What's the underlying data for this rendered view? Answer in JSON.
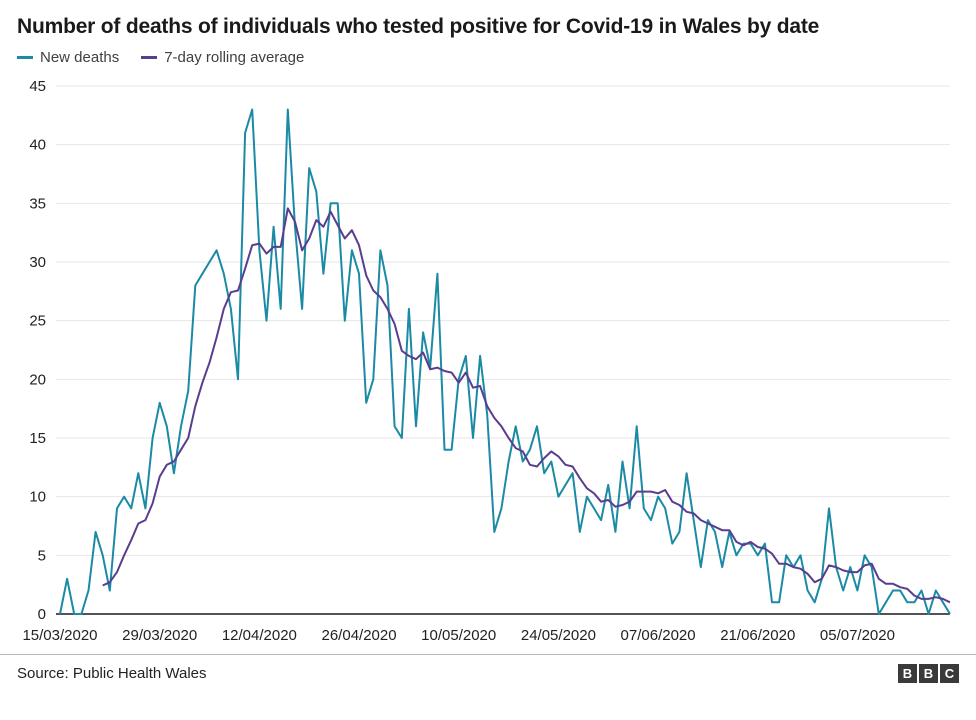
{
  "chart_data": {
    "type": "line",
    "title": "Number of deaths of individuals who tested positive for Covid-19 in Wales by date",
    "start_date": "15/03/2020",
    "x_tick_labels": [
      "15/03/2020",
      "29/03/2020",
      "12/04/2020",
      "26/04/2020",
      "10/05/2020",
      "24/05/2020",
      "07/06/2020",
      "21/06/2020",
      "05/07/2020"
    ],
    "x_tick_indices": [
      0,
      14,
      28,
      42,
      56,
      70,
      84,
      98,
      112
    ],
    "ylim": [
      0,
      45
    ],
    "y_ticks": [
      0,
      5,
      10,
      15,
      20,
      25,
      30,
      35,
      40,
      45
    ],
    "grid": "horizontal",
    "legend_position": "top-left",
    "series": [
      {
        "name": "New deaths",
        "color": "#1b8aa5",
        "values": [
          0,
          3,
          0,
          0,
          2,
          7,
          5,
          2,
          9,
          10,
          9,
          12,
          9,
          15,
          18,
          16,
          12,
          16,
          19,
          28,
          29,
          30,
          31,
          29,
          26,
          20,
          41,
          43,
          31,
          25,
          33,
          26,
          43,
          33,
          26,
          38,
          36,
          29,
          35,
          35,
          25,
          31,
          29,
          18,
          20,
          31,
          28,
          16,
          15,
          26,
          16,
          24,
          21,
          29,
          14,
          14,
          20,
          22,
          15,
          22,
          17,
          7,
          9,
          13,
          16,
          13,
          14,
          16,
          12,
          13,
          10,
          11,
          12,
          7,
          10,
          9,
          8,
          11,
          7,
          13,
          9,
          16,
          9,
          8,
          10,
          9,
          6,
          7,
          12,
          8,
          4,
          8,
          7,
          4,
          7,
          5,
          6,
          6,
          5,
          6,
          1,
          1,
          5,
          4,
          5,
          2,
          1,
          3,
          9,
          4,
          2,
          4,
          2,
          5,
          4,
          0,
          1,
          2,
          2,
          1,
          1,
          2,
          0,
          2,
          1,
          0
        ]
      },
      {
        "name": "7-day rolling average",
        "color": "#5a3d8f",
        "derived": "trailing 7-day mean of New deaths",
        "window": 7
      }
    ]
  },
  "footer": {
    "source": "Source: Public Health Wales",
    "logo": [
      "B",
      "B",
      "C"
    ]
  }
}
